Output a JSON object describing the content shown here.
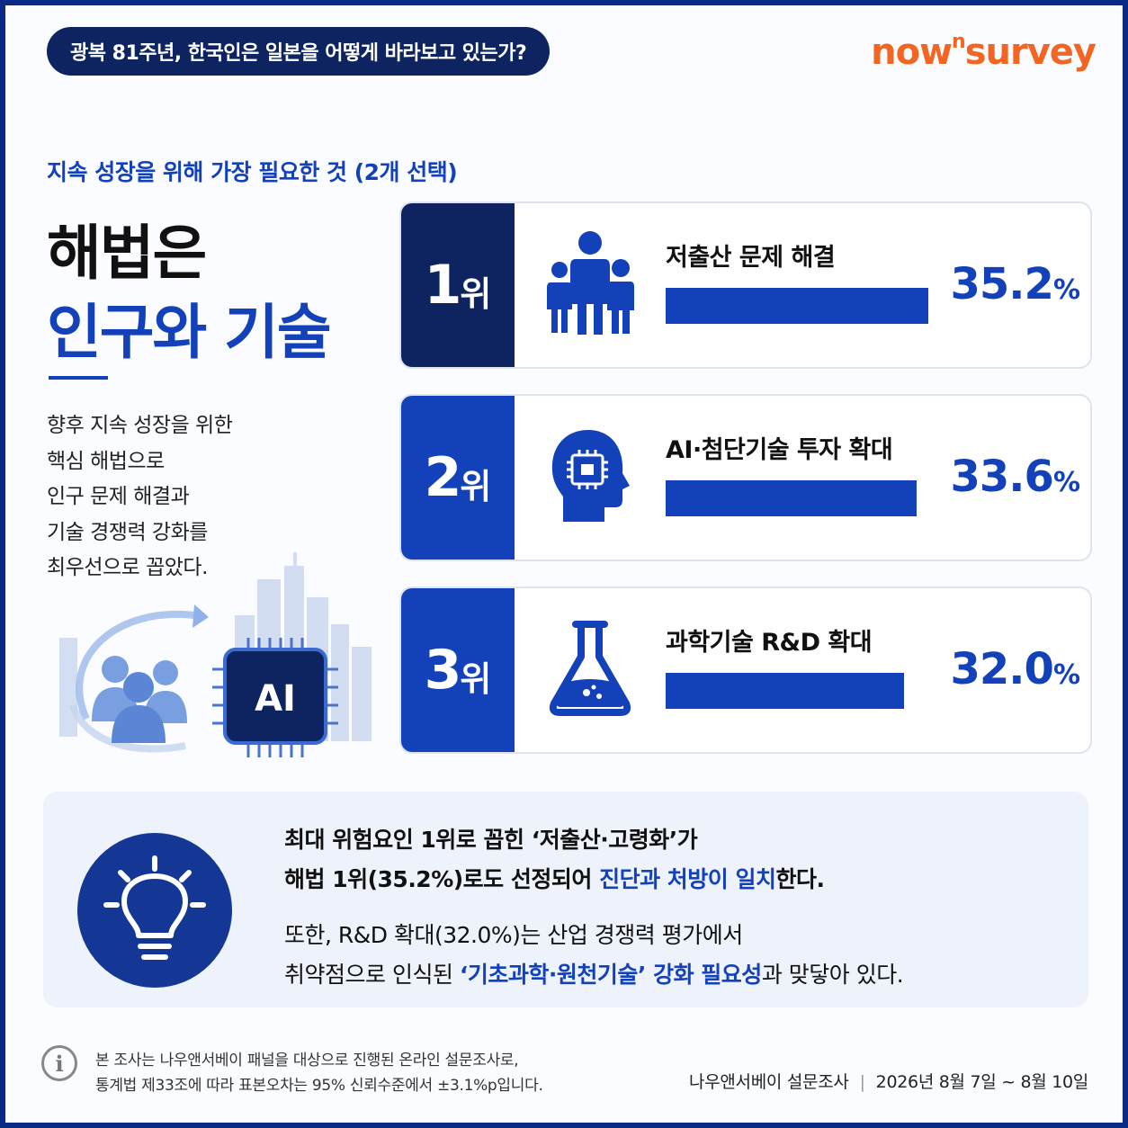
{
  "header": {
    "survey_title": "광복 81주년, 한국인은 일본을 어떻게 바라보고 있는가?",
    "brand_main": "now",
    "brand_sup": "n",
    "brand_tail": "survey"
  },
  "intro": {
    "subtitle": "지속 성장을 위해 가장 필요한 것 (2개 선택)",
    "headline_line1": "해법은",
    "headline_line2": "인구와 기술",
    "description": [
      "향후 지속 성장을 위한",
      "핵심 해법으로",
      "인구 문제 해결과",
      "기술 경쟁력 강화를",
      "최우선으로 꼽았다."
    ],
    "illustration_chip_label": "AI"
  },
  "chart_data": {
    "type": "bar",
    "categories": [
      "저출산 문제 해결",
      "AI·첨단기술 투자 확대",
      "과학기술 R&D 확대"
    ],
    "values": [
      35.2,
      33.6,
      32.0
    ],
    "ranks": [
      "1",
      "2",
      "3"
    ],
    "rank_suffix": "위",
    "value_display": [
      "35.2",
      "33.6",
      "32.0"
    ],
    "unit": "%",
    "icons": [
      "family-icon",
      "ai-head-icon",
      "flask-icon"
    ],
    "badge_colors": [
      "#0d2461",
      "#1241b9",
      "#1241b9"
    ],
    "bar_color": "#1241b9",
    "title": "지속 성장을 위해 가장 필요한 것 (2개 선택)"
  },
  "insight": {
    "line1": "최대 위험요인 1위로 꼽힌 ‘저출산·고령화’가",
    "line2_pre": "해법 1위(35.2%)로도 선정되어 ",
    "line2_hl": "진단과 처방이 일치",
    "line2_post": "한다.",
    "line3": "또한, R&D 확대(32.0%)는 산업 경쟁력 평가에서",
    "line4_pre": "취약점으로 인식된 ",
    "line4_hl": "‘기초과학·원천기술’ 강화 필요성",
    "line4_post": "과 맞닿아 있다."
  },
  "footer": {
    "note_line1": "본 조사는 나우앤서베이 패널을 대상으로 진행된 온라인 설문조사로,",
    "note_line2": "통계법 제33조에 따라 표본오차는 95% 신뢰수준에서 ±3.1%p입니다.",
    "info_glyph": "i",
    "source": "나우앤서베이 설문조사",
    "separator": "|",
    "period": "2026년 8월 7일 ~ 8월 10일"
  }
}
